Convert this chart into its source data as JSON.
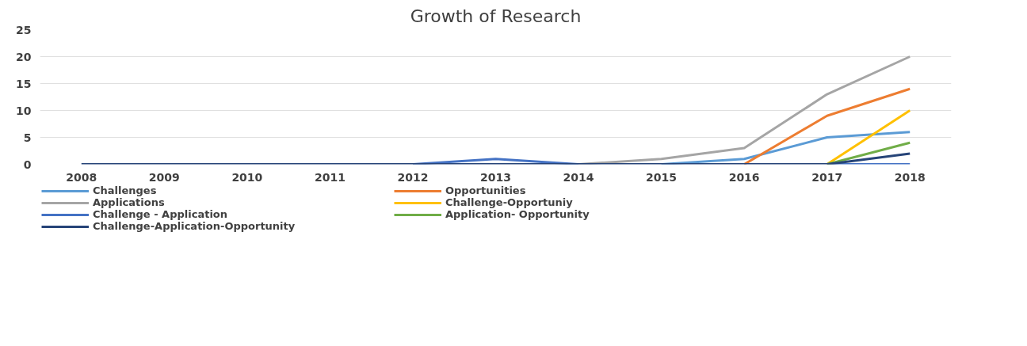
{
  "chart_data": {
    "type": "line",
    "title": "Growth of Research",
    "categories": [
      "2008",
      "2009",
      "2010",
      "2011",
      "2012",
      "2013",
      "2014",
      "2015",
      "2016",
      "2017",
      "2018"
    ],
    "series": [
      {
        "name": "Challenges",
        "color": "#5b9bd5",
        "values": [
          null,
          null,
          null,
          null,
          null,
          null,
          null,
          0,
          1,
          5,
          6
        ]
      },
      {
        "name": "Opportunities",
        "color": "#ed7d31",
        "values": [
          null,
          null,
          null,
          null,
          null,
          null,
          null,
          null,
          0,
          9,
          14
        ]
      },
      {
        "name": "Applications",
        "color": "#a5a5a5",
        "values": [
          null,
          null,
          null,
          null,
          null,
          null,
          0,
          1,
          3,
          13,
          20
        ]
      },
      {
        "name": "Challenge-Opportuniy",
        "color": "#ffc000",
        "values": [
          null,
          null,
          null,
          null,
          null,
          null,
          null,
          null,
          null,
          0,
          10
        ]
      },
      {
        "name": "Challenge - Application",
        "color": "#4472c4",
        "values": [
          null,
          null,
          null,
          null,
          0,
          1,
          0,
          null,
          null,
          0,
          0
        ]
      },
      {
        "name": "Application- Opportunity",
        "color": "#70ad47",
        "values": [
          null,
          null,
          null,
          null,
          null,
          null,
          null,
          null,
          null,
          0,
          4
        ]
      },
      {
        "name": "Challenge-Application-Opportunity",
        "color": "#264478",
        "values": [
          0,
          0,
          0,
          0,
          0,
          0,
          0,
          0,
          0,
          0,
          2
        ]
      }
    ],
    "ylim": [
      0,
      25
    ],
    "yticks": [
      0,
      5,
      10,
      15,
      20,
      25
    ],
    "grid": "y",
    "legend": "bottom",
    "marker": "none",
    "line_style": "solid"
  }
}
